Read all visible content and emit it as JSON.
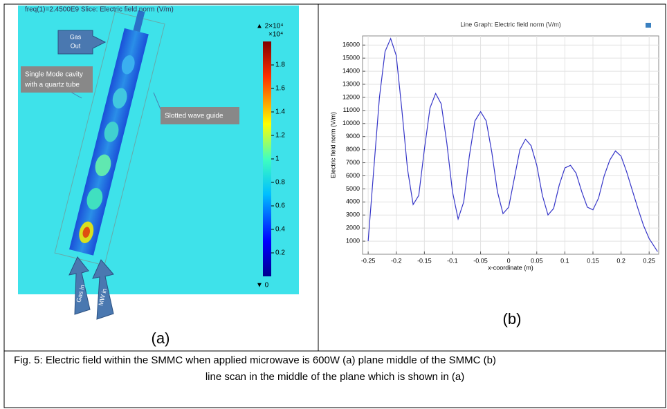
{
  "panel_a": {
    "header": "freq(1)=2.4500E9  Slice: Electric field norm (V/m)",
    "gas_out": [
      "Gas",
      "Out"
    ],
    "cavity_note": [
      "Single Mode cavity",
      "with a quartz tube"
    ],
    "guide_note": "Slotted wave guide",
    "gas_in": "Gas in",
    "mw_in": "MW in",
    "colorbar": {
      "max_label": "▲ 2×10⁴",
      "multiplier": "×10⁴",
      "min_label": "▼ 0",
      "ticks": [
        0.2,
        0.4,
        0.6,
        0.8,
        1,
        1.2,
        1.4,
        1.6,
        1.8
      ]
    },
    "label": "(a)"
  },
  "chart_data": {
    "type": "line",
    "title": "Line Graph: Electric field norm (V/m)",
    "x_label": "x-coordinate (m)",
    "y_label": "Electric field norm (V/m)",
    "x": [
      -0.25,
      -0.24,
      -0.23,
      -0.22,
      -0.21,
      -0.2,
      -0.19,
      -0.18,
      -0.17,
      -0.16,
      -0.15,
      -0.14,
      -0.13,
      -0.12,
      -0.11,
      -0.1,
      -0.09,
      -0.08,
      -0.07,
      -0.06,
      -0.05,
      -0.04,
      -0.03,
      -0.02,
      -0.01,
      0,
      0.01,
      0.02,
      0.03,
      0.04,
      0.05,
      0.06,
      0.07,
      0.08,
      0.09,
      0.1,
      0.11,
      0.12,
      0.13,
      0.14,
      0.15,
      0.16,
      0.17,
      0.18,
      0.19,
      0.2,
      0.21,
      0.22,
      0.23,
      0.24,
      0.25,
      0.265
    ],
    "values": [
      1000,
      6500,
      12000,
      15500,
      16500,
      15200,
      11000,
      6500,
      3800,
      4500,
      8000,
      11200,
      12300,
      11500,
      8500,
      4800,
      2700,
      4000,
      7500,
      10200,
      10900,
      10200,
      7800,
      4800,
      3100,
      3600,
      5800,
      8000,
      8800,
      8300,
      6800,
      4500,
      3000,
      3500,
      5300,
      6600,
      6800,
      6200,
      4800,
      3600,
      3400,
      4300,
      6000,
      7200,
      7900,
      7500,
      6300,
      4900,
      3500,
      2200,
      1200,
      200
    ],
    "color": "#3535c8",
    "xlim": [
      -0.26,
      0.267
    ],
    "ylim": [
      0,
      16700
    ],
    "xticks": [
      -0.25,
      -0.2,
      -0.15,
      -0.1,
      -0.05,
      0,
      0.05,
      0.1,
      0.15,
      0.2,
      0.25
    ],
    "yticks": [
      1000,
      2000,
      3000,
      4000,
      5000,
      6000,
      7000,
      8000,
      9000,
      10000,
      11000,
      12000,
      13000,
      14000,
      15000,
      16000
    ],
    "grid": true
  },
  "panel_b_label": "(b)",
  "caption": {
    "lines": [
      "Fig. 5:  Electric field within the SMMC when applied microwave is 600W (a) plane middle of the SMMC (b)",
      "line scan in the middle of the plane which is  shown in  (a)"
    ]
  }
}
